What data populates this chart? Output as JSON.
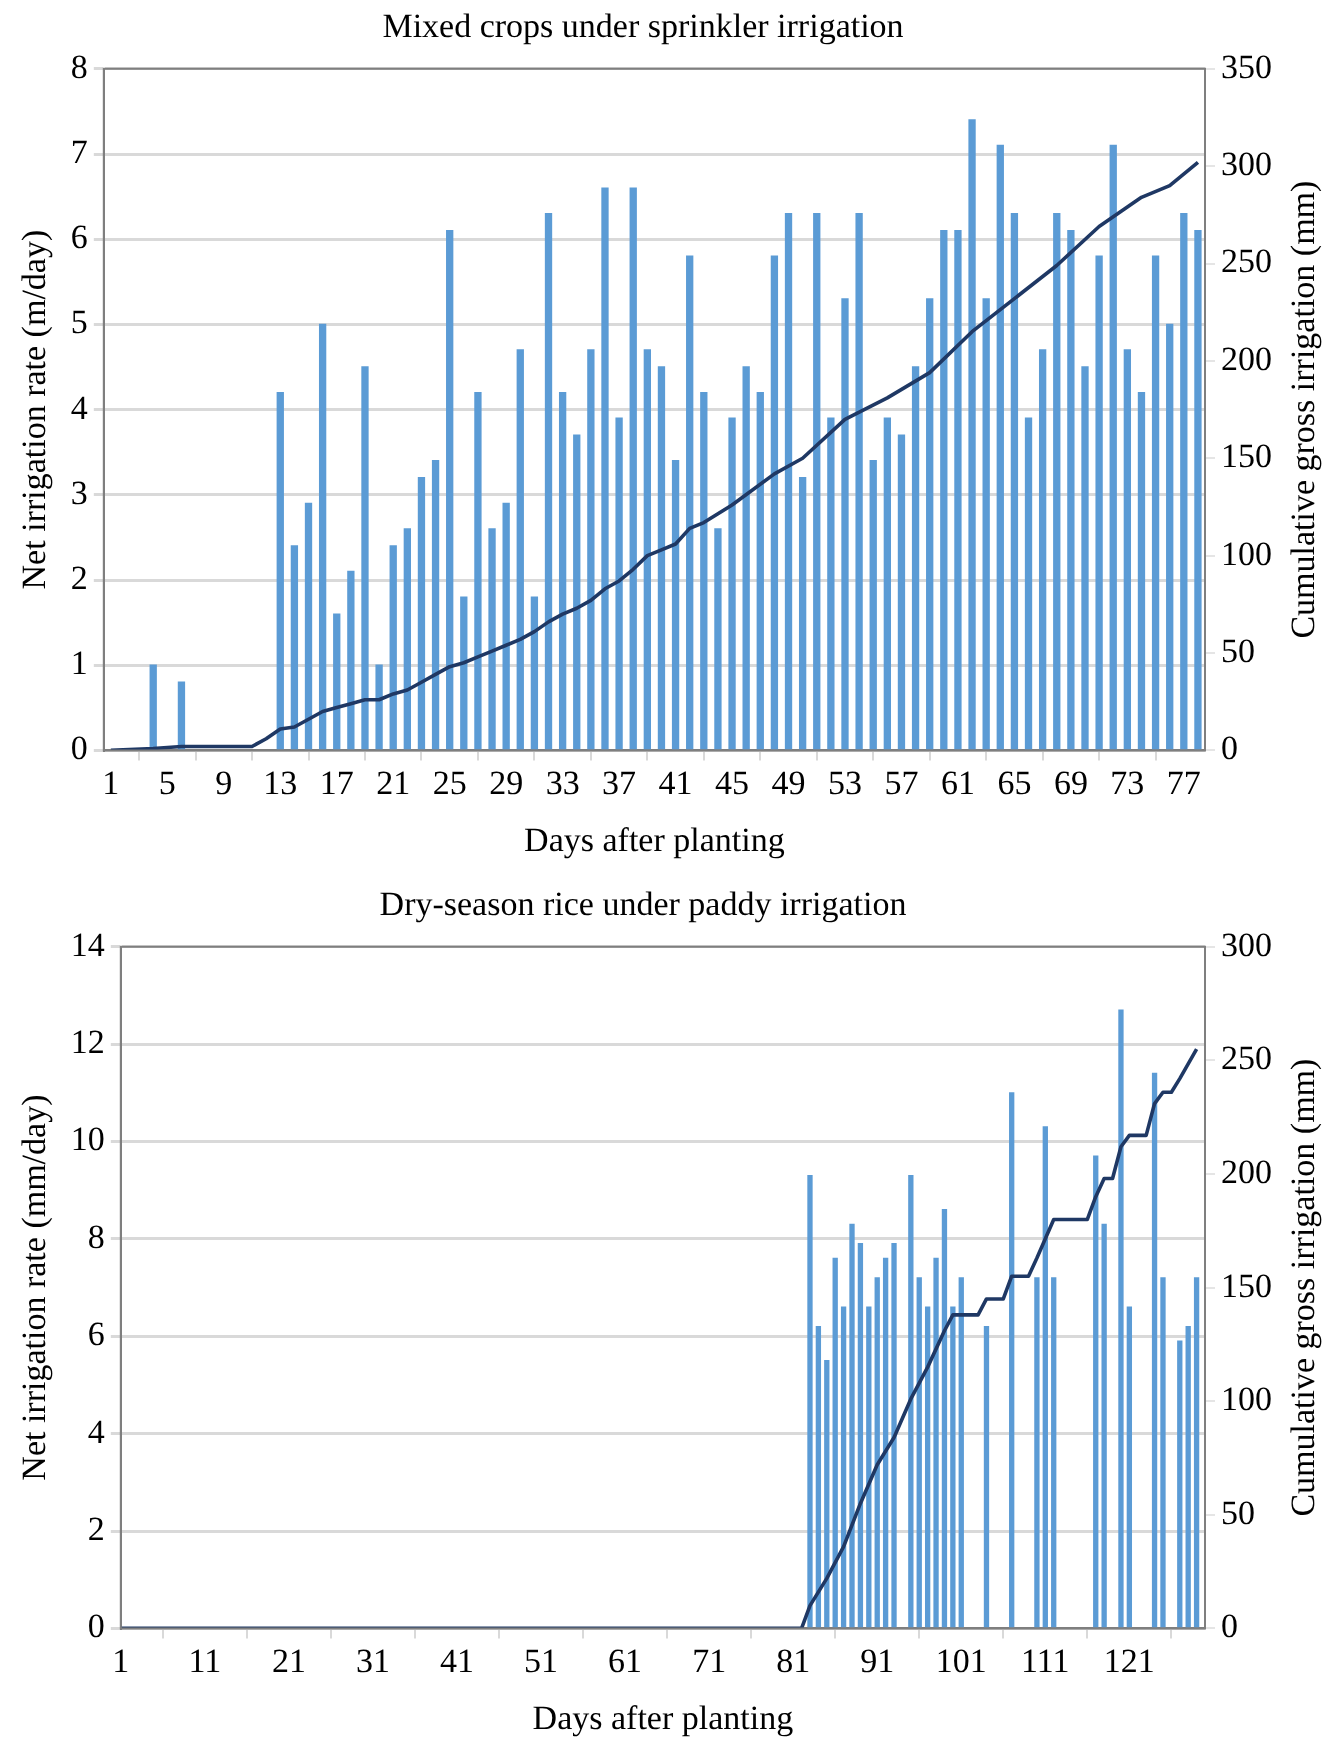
{
  "chart_data": [
    {
      "type": "bar",
      "title": "Mixed crops under sprinkler irrigation",
      "xlabel": "Days after planting",
      "ylabel": "Net irrigation rate (m/day)",
      "y2label": "Cumulative gross irrigation (mm)",
      "xlim": [
        0.5,
        78.5
      ],
      "xticks": [
        1,
        5,
        9,
        13,
        17,
        21,
        25,
        29,
        33,
        37,
        41,
        45,
        49,
        53,
        57,
        61,
        65,
        69,
        73,
        77
      ],
      "ylim": [
        0,
        8
      ],
      "yticks": [
        0,
        1,
        2,
        3,
        4,
        5,
        6,
        7,
        8
      ],
      "y2lim": [
        0,
        350
      ],
      "y2ticks": [
        0,
        50,
        100,
        150,
        200,
        250,
        300,
        350
      ],
      "grid": "y",
      "marker": "none",
      "series": [
        {
          "color": "#5b9bd5",
          "x": [
            4,
            6,
            13,
            14,
            15,
            16,
            17,
            18,
            19,
            20,
            21,
            22,
            23,
            24,
            25,
            26,
            27,
            28,
            29,
            30,
            31,
            32,
            33,
            34,
            35,
            36,
            37,
            38,
            39,
            40,
            41,
            42,
            43,
            44,
            45,
            46,
            47,
            48,
            49,
            50,
            51,
            52,
            53,
            54,
            55,
            56,
            57,
            58,
            59,
            60,
            61,
            62,
            63,
            64,
            65,
            66,
            67,
            68,
            69,
            70,
            71,
            72,
            73,
            74,
            75,
            76,
            77,
            78
          ],
          "values": [
            1.0,
            0.8,
            4.2,
            2.4,
            2.9,
            5.0,
            1.6,
            2.1,
            4.5,
            1.0,
            2.4,
            2.6,
            3.2,
            3.4,
            6.1,
            1.8,
            4.2,
            2.6,
            2.9,
            4.7,
            1.8,
            6.3,
            4.2,
            3.7,
            4.7,
            6.6,
            3.9,
            6.6,
            4.7,
            4.5,
            3.4,
            5.8,
            4.2,
            2.6,
            3.9,
            4.5,
            4.2,
            5.8,
            6.3,
            3.2,
            6.3,
            3.9,
            5.3,
            6.3,
            3.4,
            3.9,
            3.7,
            4.5,
            5.3,
            6.1,
            6.1,
            7.4,
            5.3,
            7.1,
            6.3,
            3.9,
            4.7,
            6.3,
            6.1,
            4.5,
            5.8,
            7.1,
            4.7,
            4.2,
            5.8,
            5.0,
            6.3,
            6.1
          ]
        },
        {
          "type": "line",
          "axis": "y2",
          "color": "#1f3864",
          "x": [
            1,
            4,
            6,
            11,
            12,
            13,
            14,
            15,
            16,
            17,
            18,
            19,
            20,
            21,
            22,
            23,
            24,
            25,
            26,
            27,
            28,
            29,
            30,
            31,
            32,
            33,
            34,
            35,
            36,
            37,
            38,
            39,
            40,
            41,
            42,
            43,
            45,
            48,
            50,
            53,
            56,
            59,
            62,
            65,
            68,
            71,
            74,
            76,
            78
          ],
          "values": [
            0,
            1,
            2,
            2,
            6,
            11,
            12,
            16,
            20,
            22,
            24,
            26,
            26,
            29,
            31,
            35,
            39,
            43,
            45,
            48,
            51,
            54,
            57,
            61,
            66,
            70,
            73,
            77,
            83,
            87,
            93,
            100,
            103,
            106,
            114,
            117,
            126,
            142,
            150,
            170,
            181,
            194,
            215,
            232,
            249,
            269,
            284,
            290,
            302
          ]
        }
      ]
    },
    {
      "type": "bar",
      "title": "Dry-season rice under paddy irrigation",
      "xlabel": "Days after planting",
      "ylabel": "Net irrigation rate (mm/day)",
      "y2label": "Cumulative gross irrigation (mm)",
      "xlim": [
        1,
        130
      ],
      "xticks": [
        1,
        11,
        21,
        31,
        41,
        51,
        61,
        71,
        81,
        91,
        101,
        111,
        121
      ],
      "ylim": [
        0,
        14
      ],
      "yticks": [
        0,
        2,
        4,
        6,
        8,
        10,
        12,
        14
      ],
      "y2lim": [
        0,
        300
      ],
      "y2ticks": [
        0,
        50,
        100,
        150,
        200,
        250,
        300
      ],
      "grid": "y",
      "marker": "none",
      "series": [
        {
          "color": "#5b9bd5",
          "x": [
            83,
            84,
            85,
            86,
            87,
            88,
            89,
            90,
            91,
            92,
            93,
            95,
            96,
            97,
            98,
            99,
            100,
            101,
            104,
            107,
            110,
            111,
            112,
            117,
            118,
            120,
            121,
            124,
            125,
            127,
            128,
            129
          ],
          "values": [
            9.3,
            6.2,
            5.5,
            7.6,
            6.6,
            8.3,
            7.9,
            6.6,
            7.2,
            7.6,
            7.9,
            9.3,
            7.2,
            6.6,
            7.6,
            8.6,
            6.6,
            7.2,
            6.2,
            11.0,
            7.2,
            10.3,
            7.2,
            9.7,
            8.3,
            12.7,
            6.6,
            11.4,
            7.2,
            5.9,
            6.2,
            7.2
          ]
        },
        {
          "type": "line",
          "axis": "y2",
          "color": "#1f3864",
          "x": [
            1,
            82,
            83,
            85,
            87,
            89,
            91,
            93,
            95,
            97,
            99,
            100,
            101,
            103,
            104,
            106,
            107,
            109,
            110,
            112,
            116,
            117,
            118,
            119,
            120,
            121,
            123,
            124,
            125,
            126,
            127,
            129
          ],
          "values": [
            0,
            0,
            10,
            22,
            36,
            55,
            72,
            84,
            101,
            115,
            131,
            138,
            138,
            138,
            145,
            145,
            155,
            155,
            163,
            180,
            180,
            190,
            198,
            198,
            212,
            217,
            217,
            231,
            236,
            236,
            242,
            255
          ]
        }
      ]
    }
  ]
}
